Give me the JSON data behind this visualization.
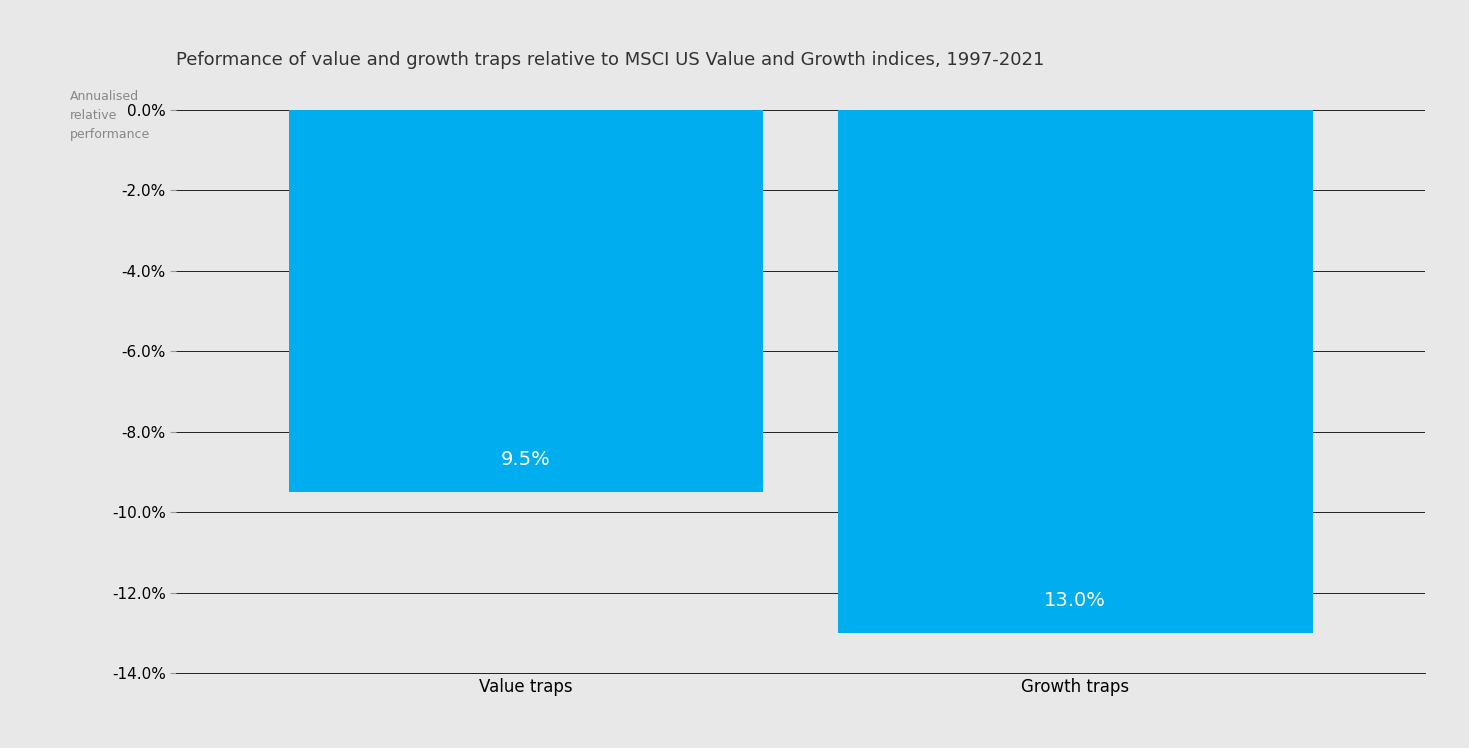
{
  "title": "Peformance of value and growth traps relative to MSCI US Value and Growth indices, 1997-2021",
  "ylabel": "Annualised\nrelative\nperformance",
  "categories": [
    "Value traps",
    "Growth traps"
  ],
  "values": [
    -9.5,
    -13.0
  ],
  "bar_color": "#00AEEF",
  "bar_labels": [
    "9.5%",
    "13.0%"
  ],
  "ylim": [
    -14.0,
    0.5
  ],
  "yticks": [
    0.0,
    -2.0,
    -4.0,
    -6.0,
    -8.0,
    -10.0,
    -12.0,
    -14.0
  ],
  "background_color": "#E8E8E8",
  "title_fontsize": 13,
  "ylabel_fontsize": 9,
  "label_fontsize": 12,
  "tick_fontsize": 11,
  "bar_label_fontsize": 14,
  "bar_label_color": "#FFFFFF",
  "grid_color": "#000000",
  "grid_linewidth": 0.6,
  "x_positions": [
    0.28,
    0.72
  ],
  "bar_width": 0.38,
  "xlim": [
    0.0,
    1.0
  ]
}
